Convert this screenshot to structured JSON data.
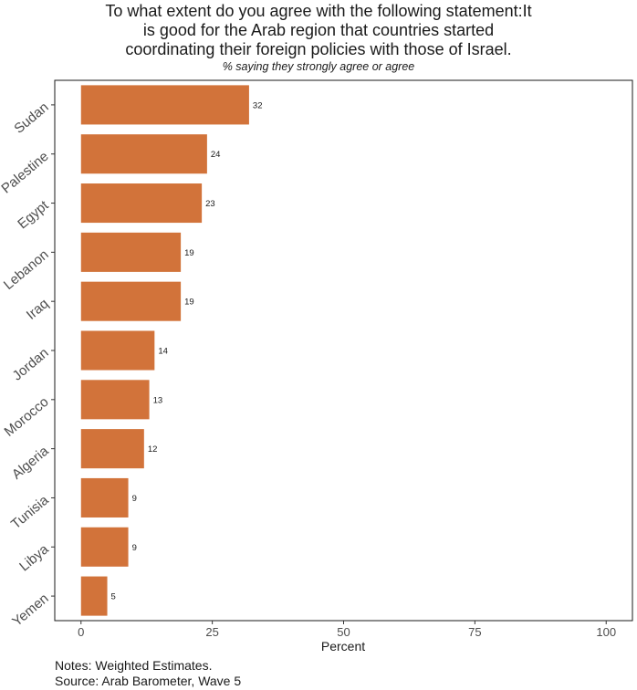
{
  "chart_data": {
    "type": "bar",
    "orientation": "horizontal",
    "title_lines": [
      "To what extent do you agree with the following statement:It",
      "is good for the Arab region that countries started",
      "coordinating their foreign policies with those of Israel."
    ],
    "subtitle": "% saying they strongly agree or agree",
    "categories": [
      "Sudan",
      "Palestine",
      "Egypt",
      "Lebanon",
      "Iraq",
      "Jordan",
      "Morocco",
      "Algeria",
      "Tunisia",
      "Libya",
      "Yemen"
    ],
    "values": [
      32,
      24,
      23,
      19,
      19,
      14,
      13,
      12,
      9,
      9,
      5
    ],
    "data_labels": [
      "32",
      "24",
      "23",
      "19",
      "19",
      "14",
      "13",
      "12",
      "9",
      "9",
      "5"
    ],
    "xlabel": "Percent",
    "ylabel": "",
    "xlim": [
      -5,
      105
    ],
    "xticks": [
      0,
      25,
      50,
      75,
      100
    ],
    "bar_color": "#d2733a",
    "grid": false,
    "legend": "none"
  },
  "notes": {
    "line1": "Notes: Weighted Estimates.",
    "line2": "Source: Arab Barometer, Wave 5"
  }
}
